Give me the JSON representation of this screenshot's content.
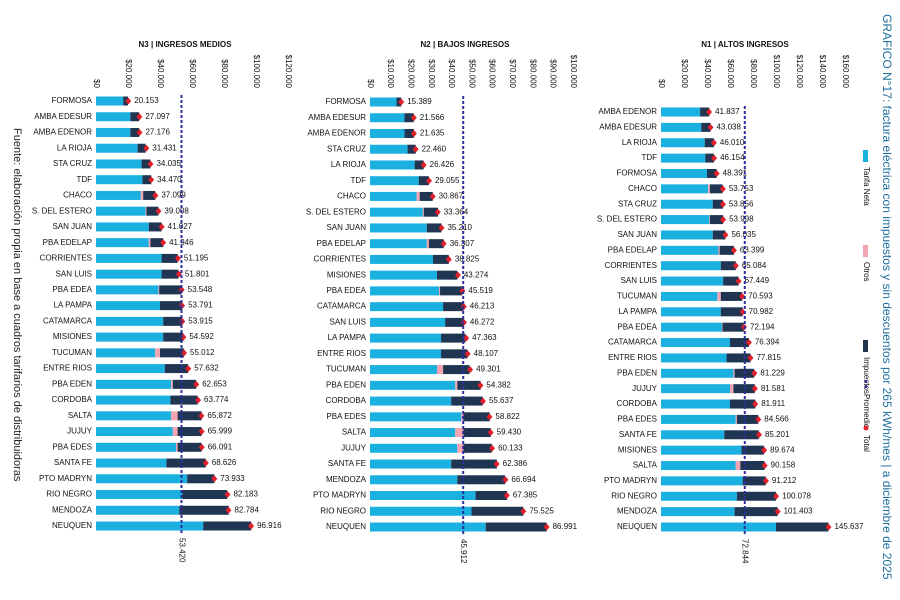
{
  "title": "GRAFICO N°17: factura eléctrica con impuestos y sin descuentos por 265 kWh/mes | a diciembre de 2025",
  "source": "Fuente: elaboración propia en base a cuadros tarifarios de distribuidoras",
  "chart_data": [
    {
      "type": "stacked-bar-horizontal",
      "title": "N3 | INGRESOS MEDIOS",
      "categories": [
        "FORMOSA",
        "AMBA EDESUR",
        "AMBA EDENOR",
        "LA RIOJA",
        "STA CRUZ",
        "TDF",
        "CHACO",
        "S. DEL ESTERO",
        "SAN JUAN",
        "PBA EDELAP",
        "CORRIENTES",
        "SAN LUIS",
        "PBA EDEA",
        "LA PAMPA",
        "CATAMARCA",
        "MISIONES",
        "TUCUMAN",
        "ENTRE RIOS",
        "PBA EDEN",
        "CORDOBA",
        "SALTA",
        "JUJUY",
        "PBA EDES",
        "SANTA FE",
        "PTO MADRYN",
        "RIO NEGRO",
        "MENDOZA",
        "NEUQUEN"
      ],
      "series": [
        {
          "name": "Tarifa Neta",
          "color": "#1ab0e0",
          "values": [
            17000,
            21500,
            21500,
            26000,
            28500,
            29000,
            28000,
            31000,
            33000,
            33000,
            41000,
            41000,
            39000,
            40000,
            42000,
            42000,
            37000,
            43000,
            47000,
            46500,
            47000,
            48000,
            50000,
            44000,
            57000,
            54000,
            52000,
            67000
          ]
        },
        {
          "name": "Otros",
          "color": "#f4a3b0",
          "values": [
            0,
            0,
            0,
            0,
            0,
            0,
            1500,
            500,
            0,
            1000,
            0,
            0,
            500,
            0,
            0,
            0,
            3000,
            0,
            1000,
            0,
            4000,
            3000,
            1000,
            0,
            0,
            0,
            0,
            0
          ]
        },
        {
          "name": "Impuestos",
          "color": "#1f3552",
          "values": [
            3000,
            5500,
            5500,
            5000,
            5500,
            5500,
            7500,
            7500,
            8000,
            8000,
            10000,
            10500,
            14000,
            14000,
            12000,
            12500,
            15000,
            14500,
            14500,
            17000,
            15000,
            15000,
            15000,
            24500,
            17000,
            28000,
            31000,
            30000
          ]
        }
      ],
      "totals": {
        "name": "Total",
        "color": "#e0202a",
        "values": [
          20153,
          27097,
          27176,
          31431,
          34035,
          34470,
          37099,
          39008,
          41027,
          41946,
          51195,
          51801,
          53548,
          53791,
          53915,
          54592,
          55012,
          57632,
          62653,
          63774,
          65872,
          65999,
          66091,
          68626,
          73933,
          82183,
          82784,
          96916
        ],
        "value_labels": [
          "20.153",
          "27.097",
          "27.176",
          "31.431",
          "34.035",
          "34.470",
          "37.099",
          "39.008",
          "41.027",
          "41.946",
          "51.195",
          "51.801",
          "53.548",
          "53.791",
          "53.915",
          "54.592",
          "55.012",
          "57.632",
          "62.653",
          "63.774",
          "65.872",
          "65.999",
          "66.091",
          "68.626",
          "73.933",
          "82.183",
          "82.784",
          "96.916"
        ]
      },
      "average": {
        "name": "Promedio",
        "color": "#2e2e9e",
        "value": 53420,
        "label": "53.420"
      },
      "xlim": [
        0,
        120000
      ],
      "xticks": [
        {
          "value": 0,
          "label": "$0"
        },
        {
          "value": 20000,
          "label": "$20.000"
        },
        {
          "value": 40000,
          "label": "$40.000"
        },
        {
          "value": 60000,
          "label": "$60.000"
        },
        {
          "value": 80000,
          "label": "$80.000"
        },
        {
          "value": 100000,
          "label": "$100.000"
        },
        {
          "value": 120000,
          "label": "$120.000"
        }
      ]
    },
    {
      "type": "stacked-bar-horizontal",
      "title": "N2 | BAJOS INGRESOS",
      "categories": [
        "FORMOSA",
        "AMBA EDESUR",
        "AMBA EDENOR",
        "STA CRUZ",
        "LA RIOJA",
        "TDF",
        "CHACO",
        "S. DEL ESTERO",
        "SAN JUAN",
        "PBA EDELAP",
        "CORRIENTES",
        "MISIONES",
        "PBA EDEA",
        "CATAMARCA",
        "SAN LUIS",
        "LA PAMPA",
        "ENTRE RIOS",
        "TUCUMAN",
        "PBA EDEN",
        "CORDOBA",
        "PBA EDES",
        "SALTA",
        "JUJUY",
        "SANTA FE",
        "MENDOZA",
        "PTO MADRYN",
        "RIO NEGRO",
        "NEUQUEN"
      ],
      "series": [
        {
          "name": "Tarifa Neta",
          "color": "#1ab0e0",
          "values": [
            13000,
            17000,
            17000,
            18500,
            22000,
            24000,
            23000,
            26000,
            28000,
            28000,
            31000,
            33000,
            34000,
            36000,
            37000,
            35000,
            35000,
            33000,
            42000,
            40000,
            45000,
            42000,
            43000,
            40000,
            43000,
            52000,
            50000,
            57000
          ]
        },
        {
          "name": "Otros",
          "color": "#f4a3b0",
          "values": [
            0,
            0,
            0,
            0,
            0,
            0,
            1500,
            500,
            0,
            1000,
            0,
            0,
            500,
            0,
            0,
            0,
            0,
            3000,
            1000,
            0,
            1000,
            4000,
            3000,
            0,
            0,
            0,
            0,
            0
          ]
        },
        {
          "name": "Impuestos",
          "color": "#1f3552",
          "values": [
            2400,
            4500,
            4600,
            4000,
            4400,
            5000,
            6400,
            7000,
            7200,
            7300,
            7800,
            10000,
            11000,
            10000,
            9300,
            12000,
            13000,
            13000,
            11500,
            15500,
            13000,
            13500,
            14000,
            22500,
            23500,
            15500,
            25500,
            30000
          ]
        }
      ],
      "totals": {
        "name": "Total",
        "color": "#e0202a",
        "values": [
          15389,
          21566,
          21635,
          22460,
          26426,
          29055,
          30867,
          33364,
          35210,
          36307,
          38825,
          43274,
          45519,
          46213,
          46272,
          47363,
          48107,
          49301,
          54382,
          55637,
          58822,
          59430,
          60133,
          62386,
          66694,
          67385,
          75525,
          86991
        ],
        "value_labels": [
          "15.389",
          "21.566",
          "21.635",
          "22.460",
          "26.426",
          "29.055",
          "30.867",
          "33.364",
          "35.210",
          "36.307",
          "38.825",
          "43.274",
          "45.519",
          "46.213",
          "46.272",
          "47.363",
          "48.107",
          "49.301",
          "54.382",
          "55.637",
          "58.822",
          "59.430",
          "60.133",
          "62.386",
          "66.694",
          "67.385",
          "75.525",
          "86.991"
        ]
      },
      "average": {
        "name": "Promedio",
        "color": "#2e2e9e",
        "value": 45912,
        "label": "45.912"
      },
      "xlim": [
        0,
        100000
      ],
      "xticks": [
        {
          "value": 0,
          "label": "$0"
        },
        {
          "value": 10000,
          "label": "$10.000"
        },
        {
          "value": 20000,
          "label": "$20.000"
        },
        {
          "value": 30000,
          "label": "$30.000"
        },
        {
          "value": 40000,
          "label": "$40.000"
        },
        {
          "value": 50000,
          "label": "$50.000"
        },
        {
          "value": 60000,
          "label": "$60.000"
        },
        {
          "value": 70000,
          "label": "$70.000"
        },
        {
          "value": 80000,
          "label": "$80.000"
        },
        {
          "value": 90000,
          "label": "$90.000"
        },
        {
          "value": 100000,
          "label": "$100.000"
        }
      ]
    },
    {
      "type": "stacked-bar-horizontal",
      "title": "N1 | ALTOS INGRESOS",
      "categories": [
        "AMBA EDENOR",
        "AMBA EDESUR",
        "LA RIOJA",
        "TDF",
        "FORMOSA",
        "CHACO",
        "STA CRUZ",
        "S. DEL ESTERO",
        "SAN JUAN",
        "PBA EDELAP",
        "CORRIENTES",
        "SAN LUIS",
        "TUCUMAN",
        "LA PAMPA",
        "PBA EDEA",
        "CATAMARCA",
        "ENTRE RIOS",
        "PBA EDEN",
        "JUJUY",
        "CORDOBA",
        "PBA EDES",
        "SANTA FE",
        "MISIONES",
        "SALTA",
        "PTO MADRYN",
        "RIO NEGRO",
        "MENDOZA",
        "NEUQUEN"
      ],
      "series": [
        {
          "name": "Tarifa Neta",
          "color": "#1ab0e0",
          "values": [
            34000,
            35000,
            38000,
            38500,
            40000,
            41000,
            45000,
            42000,
            45000,
            50000,
            52000,
            54000,
            49000,
            52000,
            53000,
            60000,
            57000,
            63000,
            60000,
            60000,
            65000,
            55000,
            70000,
            65000,
            71000,
            66000,
            64000,
            100000
          ]
        },
        {
          "name": "Otros",
          "color": "#f4a3b0",
          "values": [
            0,
            0,
            0,
            0,
            0,
            1500,
            0,
            500,
            0,
            1000,
            0,
            0,
            3000,
            0,
            500,
            0,
            0,
            1000,
            3000,
            0,
            1000,
            0,
            0,
            4000,
            0,
            0,
            0,
            0
          ]
        },
        {
          "name": "Impuestos",
          "color": "#1f3552",
          "values": [
            8000,
            8000,
            8000,
            7500,
            8400,
            11000,
            8800,
            11500,
            11000,
            12400,
            13000,
            13400,
            18500,
            19000,
            18500,
            16400,
            20800,
            17000,
            18500,
            22000,
            18500,
            30000,
            19500,
            21000,
            20000,
            34000,
            37400,
            45600
          ]
        }
      ],
      "totals": {
        "name": "Total",
        "color": "#e0202a",
        "values": [
          41837,
          43038,
          46010,
          46154,
          48391,
          53753,
          53856,
          53998,
          56035,
          63399,
          65084,
          67449,
          70593,
          70982,
          72194,
          76394,
          77815,
          81229,
          81581,
          81911,
          84566,
          85201,
          89674,
          90158,
          91212,
          100078,
          101403,
          145637
        ],
        "value_labels": [
          "41.837",
          "43.038",
          "46.010",
          "46.154",
          "48.391",
          "53.753",
          "53.856",
          "53.998",
          "56.035",
          "63.399",
          "65.084",
          "67.449",
          "70.593",
          "70.982",
          "72.194",
          "76.394",
          "77.815",
          "81.229",
          "81.581",
          "81.911",
          "84.566",
          "85.201",
          "89.674",
          "90.158",
          "91.212",
          "100.078",
          "101.403",
          "145.637"
        ]
      },
      "average": {
        "name": "Promedio",
        "color": "#2e2e9e",
        "value": 72844,
        "label": "72.844"
      },
      "xlim": [
        0,
        160000
      ],
      "xticks": [
        {
          "value": 0,
          "label": "$0"
        },
        {
          "value": 20000,
          "label": "$20.000"
        },
        {
          "value": 40000,
          "label": "$40.000"
        },
        {
          "value": 60000,
          "label": "$60.000"
        },
        {
          "value": 80000,
          "label": "$80.000"
        },
        {
          "value": 100000,
          "label": "$100.000"
        },
        {
          "value": 120000,
          "label": "$120.000"
        },
        {
          "value": 140000,
          "label": "$140.000"
        },
        {
          "value": 160000,
          "label": "$160.000"
        }
      ]
    }
  ]
}
